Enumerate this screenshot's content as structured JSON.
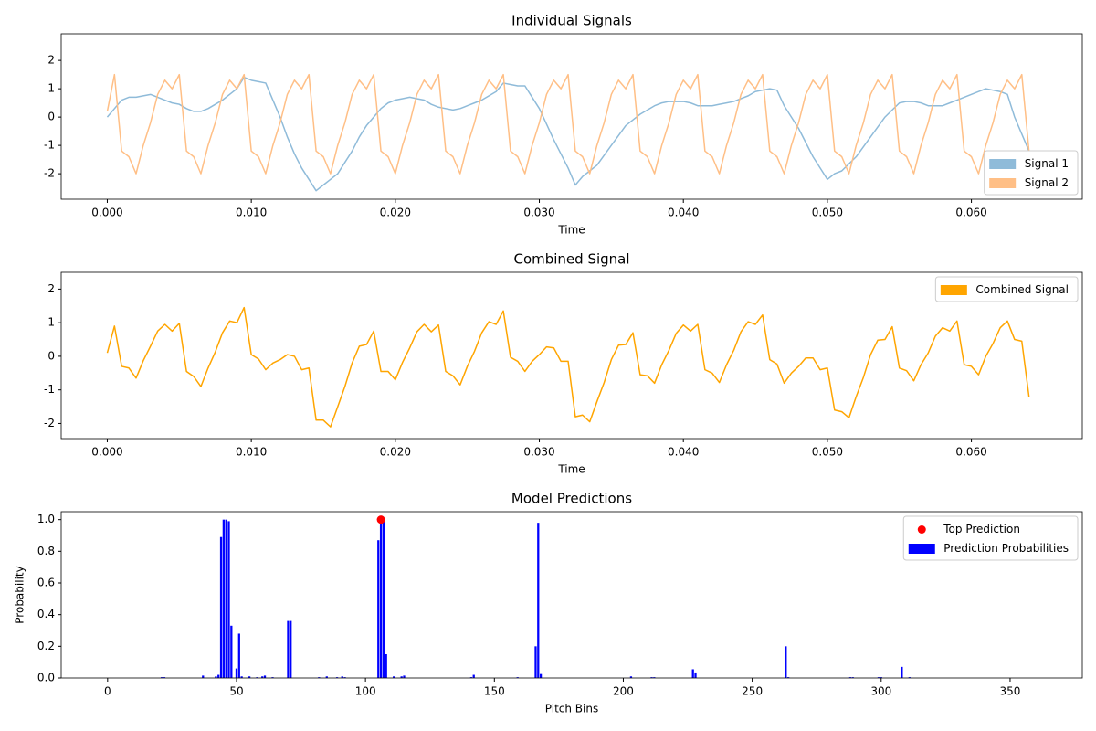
{
  "chart_data": [
    {
      "type": "line",
      "title": "Individual Signals",
      "xlabel": "Time",
      "x": [
        0,
        0.0005,
        0.001,
        0.0015,
        0.002,
        0.0025,
        0.003,
        0.0035,
        0.004,
        0.0045,
        0.005,
        0.0055,
        0.006,
        0.0065,
        0.007,
        0.0075,
        0.008,
        0.0085,
        0.009,
        0.0095,
        0.01,
        0.0105,
        0.011,
        0.0115,
        0.012,
        0.0125,
        0.013,
        0.0135,
        0.014,
        0.0145,
        0.015,
        0.0155,
        0.016,
        0.0165,
        0.017,
        0.0175,
        0.018,
        0.0185,
        0.019,
        0.0195,
        0.02,
        0.0205,
        0.021,
        0.0215,
        0.022,
        0.0225,
        0.023,
        0.0235,
        0.024,
        0.0245,
        0.025,
        0.0255,
        0.026,
        0.0265,
        0.027,
        0.0275,
        0.028,
        0.0285,
        0.029,
        0.0295,
        0.03,
        0.0305,
        0.031,
        0.0315,
        0.032,
        0.0325,
        0.033,
        0.0335,
        0.034,
        0.0345,
        0.035,
        0.0355,
        0.036,
        0.0365,
        0.037,
        0.0375,
        0.038,
        0.0385,
        0.039,
        0.0395,
        0.04,
        0.0405,
        0.041,
        0.0415,
        0.042,
        0.0425,
        0.043,
        0.0435,
        0.044,
        0.0445,
        0.045,
        0.0455,
        0.046,
        0.0465,
        0.047,
        0.0475,
        0.048,
        0.0485,
        0.049,
        0.0495,
        0.05,
        0.0505,
        0.051,
        0.0515,
        0.052,
        0.0525,
        0.053,
        0.0535,
        0.054,
        0.0545,
        0.055,
        0.0555,
        0.056,
        0.0565,
        0.057,
        0.0575,
        0.058,
        0.0585,
        0.059,
        0.0595,
        0.06,
        0.0605,
        0.061,
        0.0615,
        0.062,
        0.0625,
        0.063,
        0.0635,
        0.064
      ],
      "series": [
        {
          "name": "Signal 1",
          "color": "#8fbbd9",
          "values": [
            0.0,
            0.3,
            0.6,
            0.7,
            0.7,
            0.75,
            0.8,
            0.7,
            0.6,
            0.5,
            0.45,
            0.3,
            0.2,
            0.2,
            0.3,
            0.45,
            0.6,
            0.8,
            1.0,
            1.4,
            1.3,
            1.25,
            1.2,
            0.6,
            0.0,
            -0.7,
            -1.3,
            -1.8,
            -2.2,
            -2.6,
            -2.4,
            -2.2,
            -2.0,
            -1.6,
            -1.2,
            -0.7,
            -0.3,
            0.0,
            0.3,
            0.5,
            0.6,
            0.65,
            0.7,
            0.65,
            0.6,
            0.45,
            0.35,
            0.3,
            0.25,
            0.3,
            0.4,
            0.5,
            0.6,
            0.75,
            0.9,
            1.2,
            1.15,
            1.1,
            1.1,
            0.7,
            0.3,
            -0.25,
            -0.8,
            -1.3,
            -1.8,
            -2.4,
            -2.1,
            -1.9,
            -1.7,
            -1.35,
            -1.0,
            -0.65,
            -0.3,
            -0.1,
            0.1,
            0.25,
            0.4,
            0.5,
            0.55,
            0.55,
            0.55,
            0.5,
            0.4,
            0.4,
            0.4,
            0.45,
            0.5,
            0.55,
            0.65,
            0.75,
            0.9,
            0.95,
            1.0,
            0.95,
            0.4,
            0.0,
            -0.4,
            -0.9,
            -1.4,
            -1.8,
            -2.2,
            -2.0,
            -1.9,
            -1.65,
            -1.4,
            -1.05,
            -0.7,
            -0.35,
            0.0,
            0.25,
            0.5,
            0.55,
            0.55,
            0.5,
            0.4,
            0.4,
            0.4,
            0.5,
            0.6,
            0.7,
            0.8,
            0.9,
            1.0,
            0.95,
            0.9,
            0.8,
            0.0,
            -0.6,
            -1.2
          ]
        },
        {
          "name": "Signal 2",
          "color": "#ffbf86",
          "values": [
            0.2,
            1.5,
            -1.2,
            -1.4,
            -2.0,
            -1.0,
            -0.2,
            0.8,
            1.3,
            1.0,
            1.5,
            -1.2,
            -1.4,
            -2.0,
            -1.0,
            -0.2,
            0.8,
            1.3,
            1.0,
            1.5,
            -1.2,
            -1.4,
            -2.0,
            -1.0,
            -0.2,
            0.8,
            1.3,
            1.0,
            1.5,
            -1.2,
            -1.4,
            -2.0,
            -1.0,
            -0.2,
            0.8,
            1.3,
            1.0,
            1.5,
            -1.2,
            -1.4,
            -2.0,
            -1.0,
            -0.2,
            0.8,
            1.3,
            1.0,
            1.5,
            -1.2,
            -1.4,
            -2.0,
            -1.0,
            -0.2,
            0.8,
            1.3,
            1.0,
            1.5,
            -1.2,
            -1.4,
            -2.0,
            -1.0,
            -0.2,
            0.8,
            1.3,
            1.0,
            1.5,
            -1.2,
            -1.4,
            -2.0,
            -1.0,
            -0.2,
            0.8,
            1.3,
            1.0,
            1.5,
            -1.2,
            -1.4,
            -2.0,
            -1.0,
            -0.2,
            0.8,
            1.3,
            1.0,
            1.5,
            -1.2,
            -1.4,
            -2.0,
            -1.0,
            -0.2,
            0.8,
            1.3,
            1.0,
            1.5,
            -1.2,
            -1.4,
            -2.0,
            -1.0,
            -0.2,
            0.8,
            1.3,
            1.0,
            1.5,
            -1.2,
            -1.4,
            -2.0,
            -1.0,
            -0.2,
            0.8,
            1.3,
            1.0,
            1.5,
            -1.2,
            -1.4,
            -2.0,
            -1.0,
            -0.2,
            0.8,
            1.3,
            1.0,
            1.5,
            -1.2,
            -1.4,
            -2.0,
            -1.0,
            -0.2,
            0.8,
            1.3,
            1.0,
            1.5,
            -1.2
          ]
        }
      ],
      "xlim": [
        -0.0032,
        0.0677
      ],
      "xticks": [
        {
          "value": 0,
          "label": "0.000"
        },
        {
          "value": 0.01,
          "label": "0.010"
        },
        {
          "value": 0.02,
          "label": "0.020"
        },
        {
          "value": 0.03,
          "label": "0.030"
        },
        {
          "value": 0.04,
          "label": "0.040"
        },
        {
          "value": 0.05,
          "label": "0.050"
        },
        {
          "value": 0.06,
          "label": "0.060"
        }
      ],
      "ylim": [
        -2.9,
        2.94
      ],
      "yticks": [
        -2,
        -1,
        0,
        1,
        2
      ],
      "legend": "lower right"
    },
    {
      "type": "line",
      "title": "Combined Signal",
      "xlabel": "Time",
      "x": [
        0,
        0.0005,
        0.001,
        0.0015,
        0.002,
        0.0025,
        0.003,
        0.0035,
        0.004,
        0.0045,
        0.005,
        0.0055,
        0.006,
        0.0065,
        0.007,
        0.0075,
        0.008,
        0.0085,
        0.009,
        0.0095,
        0.01,
        0.0105,
        0.011,
        0.0115,
        0.012,
        0.0125,
        0.013,
        0.0135,
        0.014,
        0.0145,
        0.015,
        0.0155,
        0.016,
        0.0165,
        0.017,
        0.0175,
        0.018,
        0.0185,
        0.019,
        0.0195,
        0.02,
        0.0205,
        0.021,
        0.0215,
        0.022,
        0.0225,
        0.023,
        0.0235,
        0.024,
        0.0245,
        0.025,
        0.0255,
        0.026,
        0.0265,
        0.027,
        0.0275,
        0.028,
        0.0285,
        0.029,
        0.0295,
        0.03,
        0.0305,
        0.031,
        0.0315,
        0.032,
        0.0325,
        0.033,
        0.0335,
        0.034,
        0.0345,
        0.035,
        0.0355,
        0.036,
        0.0365,
        0.037,
        0.0375,
        0.038,
        0.0385,
        0.039,
        0.0395,
        0.04,
        0.0405,
        0.041,
        0.0415,
        0.042,
        0.0425,
        0.043,
        0.0435,
        0.044,
        0.0445,
        0.045,
        0.0455,
        0.046,
        0.0465,
        0.047,
        0.0475,
        0.048,
        0.0485,
        0.049,
        0.0495,
        0.05,
        0.0505,
        0.051,
        0.0515,
        0.052,
        0.0525,
        0.053,
        0.0535,
        0.054,
        0.0545,
        0.055,
        0.0555,
        0.056,
        0.0565,
        0.057,
        0.0575,
        0.058,
        0.0585,
        0.059,
        0.0595,
        0.06,
        0.0605,
        0.061,
        0.0615,
        0.062,
        0.0625,
        0.063,
        0.0635,
        0.064
      ],
      "series": [
        {
          "name": "Combined Signal",
          "color": "#ffa500",
          "values": [
            0.1,
            0.9,
            -0.3,
            -0.35,
            -0.65,
            -0.13,
            0.3,
            0.75,
            0.95,
            0.75,
            0.98,
            -0.45,
            -0.6,
            -0.9,
            -0.35,
            0.13,
            0.7,
            1.05,
            1.0,
            1.45,
            0.05,
            -0.08,
            -0.4,
            -0.2,
            -0.1,
            0.05,
            0.0,
            -0.4,
            -0.35,
            -1.9,
            -1.9,
            -2.1,
            -1.5,
            -0.9,
            -0.2,
            0.3,
            0.35,
            0.75,
            -0.45,
            -0.45,
            -0.7,
            -0.18,
            0.25,
            0.73,
            0.95,
            0.73,
            0.93,
            -0.45,
            -0.58,
            -0.85,
            -0.3,
            0.15,
            0.7,
            1.03,
            0.95,
            1.35,
            -0.03,
            -0.15,
            -0.45,
            -0.15,
            0.05,
            0.28,
            0.25,
            -0.15,
            -0.15,
            -1.8,
            -1.75,
            -1.95,
            -1.35,
            -0.78,
            -0.1,
            0.33,
            0.35,
            0.7,
            -0.55,
            -0.58,
            -0.8,
            -0.25,
            0.18,
            0.68,
            0.93,
            0.75,
            0.95,
            -0.4,
            -0.5,
            -0.78,
            -0.25,
            0.18,
            0.73,
            1.03,
            0.95,
            1.23,
            -0.1,
            -0.23,
            -0.8,
            -0.5,
            -0.3,
            -0.05,
            -0.05,
            -0.4,
            -0.35,
            -1.6,
            -1.65,
            -1.83,
            -1.2,
            -0.63,
            0.05,
            0.48,
            0.5,
            0.88,
            -0.35,
            -0.43,
            -0.73,
            -0.25,
            0.1,
            0.6,
            0.85,
            0.75,
            1.05,
            -0.25,
            -0.3,
            -0.55,
            0.0,
            0.38,
            0.85,
            1.05,
            0.5,
            0.45,
            -1.2
          ]
        }
      ],
      "xlim": [
        -0.0032,
        0.0677
      ],
      "xticks": [
        {
          "value": 0,
          "label": "0.000"
        },
        {
          "value": 0.01,
          "label": "0.010"
        },
        {
          "value": 0.02,
          "label": "0.020"
        },
        {
          "value": 0.03,
          "label": "0.030"
        },
        {
          "value": 0.04,
          "label": "0.040"
        },
        {
          "value": 0.05,
          "label": "0.050"
        },
        {
          "value": 0.06,
          "label": "0.060"
        }
      ],
      "ylim": [
        -2.45,
        2.5
      ],
      "yticks": [
        -2,
        -1,
        0,
        1,
        2
      ],
      "legend": "upper right"
    },
    {
      "type": "bar",
      "title": "Model Predictions",
      "xlabel": "Pitch Bins",
      "ylabel": "Probability",
      "series": [
        {
          "name": "Top Prediction",
          "type": "scatter",
          "color": "#ff0000",
          "x": [
            106
          ],
          "values": [
            1.0
          ]
        },
        {
          "name": "Prediction Probabilities",
          "type": "bar",
          "color": "#0000ff",
          "x": [
            21,
            22,
            37,
            42,
            43,
            44,
            45,
            46,
            47,
            48,
            50,
            51,
            52,
            55,
            58,
            60,
            61,
            64,
            70,
            71,
            82,
            85,
            89,
            91,
            92,
            105,
            106,
            107,
            108,
            111,
            114,
            115,
            141,
            142,
            159,
            166,
            167,
            168,
            203,
            211,
            212,
            227,
            228,
            263,
            264,
            288,
            289,
            299,
            300,
            308,
            311
          ],
          "values": [
            0.005,
            0.005,
            0.015,
            0.01,
            0.02,
            0.89,
            1.0,
            1.0,
            0.99,
            0.33,
            0.06,
            0.28,
            0.01,
            0.01,
            0.005,
            0.01,
            0.015,
            0.005,
            0.36,
            0.36,
            0.005,
            0.01,
            0.005,
            0.01,
            0.005,
            0.87,
            1.0,
            0.99,
            0.15,
            0.01,
            0.01,
            0.015,
            0.005,
            0.02,
            0.005,
            0.2,
            0.98,
            0.025,
            0.01,
            0.005,
            0.005,
            0.055,
            0.035,
            0.2,
            0.005,
            0.005,
            0.005,
            0.005,
            0.005,
            0.07,
            0.005
          ]
        }
      ],
      "xlim": [
        -18,
        378
      ],
      "xticks": [
        0,
        50,
        100,
        150,
        200,
        250,
        300,
        350
      ],
      "ylim": [
        0,
        1.05
      ],
      "yticks": [
        {
          "value": 0,
          "label": "0.0"
        },
        {
          "value": 0.2,
          "label": "0.2"
        },
        {
          "value": 0.4,
          "label": "0.4"
        },
        {
          "value": 0.6,
          "label": "0.6"
        },
        {
          "value": 0.8,
          "label": "0.8"
        },
        {
          "value": 1.0,
          "label": "1.0"
        }
      ],
      "legend": "upper right"
    }
  ]
}
